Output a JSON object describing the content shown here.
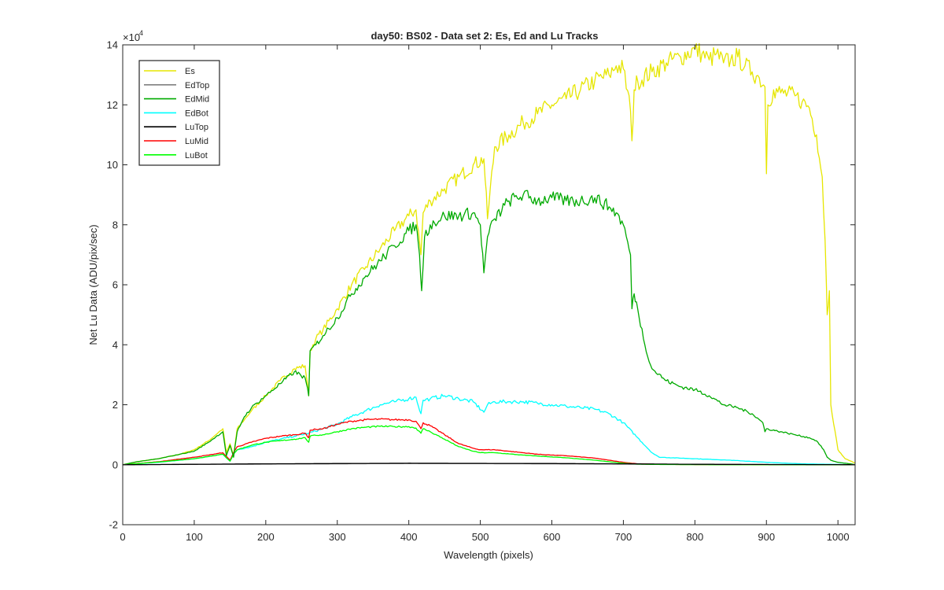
{
  "chart_data": {
    "type": "line",
    "title": "day50: BS02 - Data set 2: Es, Ed and Lu Tracks",
    "xlabel": "Wavelength (pixels)",
    "ylabel": "Net Lu Data (ADU/pix/sec)",
    "y_exponent_base": "×10",
    "y_exponent_power": "4",
    "xlim": [
      0,
      1024
    ],
    "ylim": [
      -20000,
      140000
    ],
    "y_scale_factor": 10000,
    "xticks": [
      0,
      100,
      200,
      300,
      400,
      500,
      600,
      700,
      800,
      900,
      1000
    ],
    "yticks": [
      -20000,
      0,
      20000,
      40000,
      60000,
      80000,
      100000,
      120000,
      140000
    ],
    "ytick_labels": [
      "-2",
      "0",
      "2",
      "4",
      "6",
      "8",
      "10",
      "12",
      "14"
    ],
    "grid": false,
    "legend_position": "top-left",
    "series": [
      {
        "name": "Es",
        "color": "#e6e600",
        "x": [
          0,
          20,
          50,
          80,
          100,
          120,
          140,
          145,
          150,
          155,
          160,
          170,
          180,
          200,
          220,
          240,
          255,
          260,
          262,
          270,
          280,
          300,
          320,
          340,
          360,
          380,
          400,
          410,
          417,
          420,
          430,
          450,
          470,
          490,
          505,
          510,
          520,
          540,
          560,
          580,
          600,
          620,
          640,
          660,
          680,
          690,
          700,
          710,
          712,
          715,
          720,
          740,
          760,
          780,
          800,
          810,
          820,
          830,
          840,
          850,
          860,
          870,
          880,
          890,
          898,
          900,
          902,
          910,
          920,
          940,
          950,
          960,
          970,
          978,
          982,
          985,
          988,
          990,
          1000,
          1010,
          1020,
          1024
        ],
        "y": [
          0,
          1000,
          2000,
          3500,
          5000,
          8000,
          12000,
          4000,
          7000,
          3000,
          12000,
          15000,
          18000,
          23000,
          28000,
          32000,
          33000,
          23000,
          38000,
          42000,
          45000,
          52000,
          60000,
          66000,
          72000,
          78000,
          83000,
          85000,
          70000,
          84000,
          88000,
          92000,
          96000,
          100000,
          102000,
          82000,
          106000,
          110000,
          114000,
          117000,
          120000,
          122000,
          125000,
          128000,
          130000,
          133000,
          132000,
          118000,
          108000,
          125000,
          128000,
          131000,
          134000,
          136000,
          138500,
          137000,
          135000,
          137000,
          134000,
          135000,
          136000,
          133000,
          131000,
          129000,
          126000,
          97000,
          120000,
          125000,
          124000,
          123000,
          121000,
          119000,
          110000,
          96000,
          75000,
          50000,
          58000,
          20000,
          5000,
          2000,
          1000,
          500
        ]
      },
      {
        "name": "EdTop",
        "color": "#808080",
        "x": [
          0,
          100,
          200,
          300,
          400,
          500,
          600,
          700,
          800,
          900,
          1000,
          1024
        ],
        "y": [
          0,
          100,
          200,
          300,
          400,
          350,
          300,
          200,
          100,
          50,
          20,
          0
        ]
      },
      {
        "name": "EdMid",
        "color": "#00aa00",
        "x": [
          0,
          20,
          50,
          80,
          100,
          120,
          140,
          145,
          150,
          155,
          160,
          170,
          180,
          200,
          220,
          240,
          255,
          260,
          262,
          270,
          280,
          300,
          320,
          340,
          360,
          380,
          400,
          410,
          415,
          418,
          422,
          430,
          450,
          470,
          490,
          500,
          505,
          510,
          520,
          540,
          560,
          580,
          600,
          620,
          640,
          660,
          680,
          690,
          700,
          710,
          712,
          715,
          720,
          730,
          740,
          760,
          780,
          800,
          820,
          840,
          860,
          880,
          895,
          898,
          900,
          920,
          940,
          960,
          970,
          980,
          985,
          990,
          1000,
          1010,
          1020,
          1024
        ],
        "y": [
          0,
          1000,
          2000,
          3500,
          4500,
          7500,
          11000,
          3000,
          6500,
          2500,
          11000,
          16000,
          19000,
          23000,
          27000,
          31000,
          29000,
          23000,
          38000,
          40000,
          43000,
          49000,
          57000,
          63000,
          68000,
          73000,
          78000,
          80000,
          70000,
          58000,
          76000,
          80000,
          83000,
          83000,
          84000,
          80000,
          64000,
          76000,
          82000,
          88000,
          90000,
          88000,
          89000,
          88000,
          88000,
          89000,
          86000,
          84000,
          80000,
          70000,
          52000,
          57000,
          52000,
          40000,
          32000,
          28000,
          26000,
          25000,
          23000,
          20000,
          19000,
          17000,
          14000,
          11000,
          12000,
          11000,
          10000,
          9000,
          8000,
          5000,
          2500,
          1500,
          800,
          500,
          200,
          0
        ]
      },
      {
        "name": "EdBot",
        "color": "#00ffff",
        "x": [
          0,
          50,
          100,
          140,
          150,
          155,
          160,
          180,
          200,
          220,
          240,
          260,
          280,
          300,
          320,
          340,
          360,
          380,
          400,
          410,
          417,
          420,
          430,
          450,
          470,
          490,
          505,
          510,
          520,
          540,
          560,
          580,
          600,
          620,
          640,
          660,
          680,
          700,
          720,
          740,
          750,
          800,
          850,
          900,
          950,
          1000,
          1024
        ],
        "y": [
          0,
          800,
          2000,
          3500,
          1200,
          3500,
          5000,
          6000,
          7500,
          8500,
          9500,
          10500,
          12000,
          13500,
          16000,
          18000,
          20000,
          21000,
          22000,
          22500,
          17000,
          21500,
          22000,
          23000,
          22000,
          21000,
          17500,
          20000,
          21000,
          21000,
          21000,
          20500,
          20000,
          19500,
          19000,
          18500,
          17000,
          14000,
          9000,
          4000,
          2500,
          2000,
          1500,
          800,
          300,
          100,
          0
        ]
      },
      {
        "name": "LuTop",
        "color": "#000000",
        "x": [
          0,
          100,
          200,
          300,
          400,
          500,
          600,
          700,
          800,
          900,
          1000,
          1024
        ],
        "y": [
          0,
          150,
          300,
          400,
          500,
          450,
          400,
          300,
          150,
          80,
          30,
          0
        ]
      },
      {
        "name": "LuMid",
        "color": "#ff0000",
        "x": [
          0,
          50,
          100,
          140,
          150,
          155,
          160,
          180,
          200,
          220,
          240,
          255,
          260,
          262,
          270,
          280,
          300,
          320,
          340,
          360,
          380,
          400,
          410,
          417,
          420,
          430,
          450,
          470,
          490,
          500,
          520,
          540,
          560,
          580,
          600,
          620,
          640,
          660,
          680,
          700,
          720,
          750,
          800,
          900,
          1024
        ],
        "y": [
          0,
          1000,
          2500,
          4000,
          1500,
          4000,
          6000,
          7500,
          8800,
          9500,
          10000,
          10500,
          9000,
          11500,
          11800,
          12000,
          13500,
          14500,
          15000,
          15200,
          15000,
          15000,
          14500,
          12000,
          14000,
          13000,
          10000,
          7000,
          5500,
          5000,
          5000,
          4500,
          4000,
          3500,
          3200,
          3000,
          2600,
          2200,
          1500,
          800,
          300,
          100,
          50,
          20,
          0
        ]
      },
      {
        "name": "LuBot",
        "color": "#00ff00",
        "x": [
          0,
          50,
          100,
          140,
          150,
          155,
          160,
          180,
          200,
          220,
          240,
          255,
          260,
          262,
          270,
          280,
          300,
          320,
          340,
          360,
          380,
          400,
          410,
          417,
          420,
          430,
          450,
          470,
          490,
          500,
          520,
          540,
          560,
          580,
          600,
          620,
          640,
          660,
          680,
          700,
          720,
          750,
          800,
          900,
          1024
        ],
        "y": [
          0,
          900,
          2000,
          3500,
          1200,
          3500,
          5000,
          6500,
          7500,
          8000,
          8500,
          9000,
          7500,
          9500,
          9800,
          10000,
          11000,
          12000,
          12500,
          12800,
          12700,
          12700,
          12200,
          10500,
          12000,
          11000,
          8500,
          6000,
          4500,
          4000,
          4000,
          3600,
          3200,
          2900,
          2600,
          2300,
          1900,
          1500,
          1000,
          500,
          200,
          80,
          30,
          10,
          0
        ]
      }
    ]
  }
}
